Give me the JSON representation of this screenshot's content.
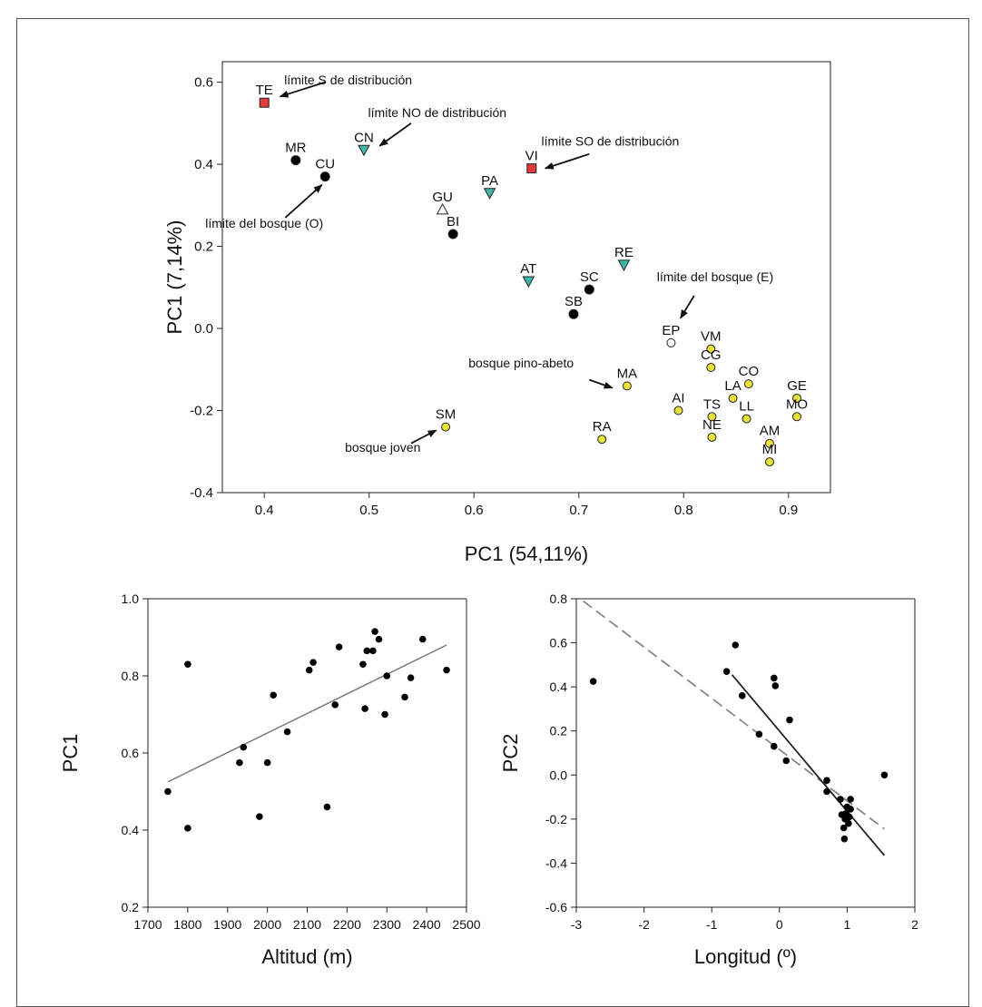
{
  "chart_data": [
    {
      "type": "scatter",
      "xlabel": "PC1 (54,11%)",
      "ylabel": "PC1 (7,14%)",
      "xlim": [
        0.36,
        0.94
      ],
      "ylim": [
        -0.4,
        0.65
      ],
      "xticks": [
        "0.4",
        "0.5",
        "0.6",
        "0.7",
        "0.8",
        "0.9"
      ],
      "xtick_values": [
        0.4,
        0.5,
        0.6,
        0.7,
        0.8,
        0.9
      ],
      "yticks": [
        "0.6",
        "0.4",
        "0.2",
        "0.0",
        "-0.2",
        "-0.4"
      ],
      "ytick_values": [
        0.6,
        0.4,
        0.2,
        0.0,
        -0.2,
        -0.4
      ],
      "marker_colors": {
        "red": "#e03b3b",
        "teal": "#3fb6a8",
        "black": "#000000",
        "yellow": "#e8e23a",
        "open": "#ffffff"
      },
      "points": [
        {
          "label": "TE",
          "x": 0.4,
          "y": 0.55,
          "marker": "square",
          "color": "red"
        },
        {
          "label": "VI",
          "x": 0.655,
          "y": 0.39,
          "marker": "square",
          "color": "red"
        },
        {
          "label": "CN",
          "x": 0.495,
          "y": 0.435,
          "marker": "triangle-down",
          "color": "teal"
        },
        {
          "label": "PA",
          "x": 0.615,
          "y": 0.33,
          "marker": "triangle-down",
          "color": "teal"
        },
        {
          "label": "AT",
          "x": 0.652,
          "y": 0.115,
          "marker": "triangle-down",
          "color": "teal"
        },
        {
          "label": "RE",
          "x": 0.743,
          "y": 0.155,
          "marker": "triangle-down",
          "color": "teal"
        },
        {
          "label": "GU",
          "x": 0.57,
          "y": 0.29,
          "marker": "triangle-up",
          "color": "open"
        },
        {
          "label": "MR",
          "x": 0.43,
          "y": 0.41,
          "marker": "circle",
          "color": "black"
        },
        {
          "label": "CU",
          "x": 0.458,
          "y": 0.37,
          "marker": "circle",
          "color": "black"
        },
        {
          "label": "BI",
          "x": 0.58,
          "y": 0.23,
          "marker": "circle",
          "color": "black"
        },
        {
          "label": "SC",
          "x": 0.71,
          "y": 0.095,
          "marker": "circle",
          "color": "black"
        },
        {
          "label": "SB",
          "x": 0.695,
          "y": 0.035,
          "marker": "circle",
          "color": "black"
        },
        {
          "label": "EP",
          "x": 0.788,
          "y": -0.035,
          "marker": "circle",
          "color": "open"
        },
        {
          "label": "VM",
          "x": 0.826,
          "y": -0.05,
          "marker": "circle",
          "color": "yellow"
        },
        {
          "label": "CG",
          "x": 0.826,
          "y": -0.095,
          "marker": "circle",
          "color": "yellow"
        },
        {
          "label": "CO",
          "x": 0.862,
          "y": -0.135,
          "marker": "circle",
          "color": "yellow"
        },
        {
          "label": "MA",
          "x": 0.746,
          "y": -0.14,
          "marker": "circle",
          "color": "yellow"
        },
        {
          "label": "LA",
          "x": 0.847,
          "y": -0.17,
          "marker": "circle",
          "color": "yellow"
        },
        {
          "label": "GE",
          "x": 0.908,
          "y": -0.17,
          "marker": "circle",
          "color": "yellow"
        },
        {
          "label": "AI",
          "x": 0.795,
          "y": -0.2,
          "marker": "circle",
          "color": "yellow"
        },
        {
          "label": "TS",
          "x": 0.827,
          "y": -0.215,
          "marker": "circle",
          "color": "yellow"
        },
        {
          "label": "LL",
          "x": 0.86,
          "y": -0.22,
          "marker": "circle",
          "color": "yellow"
        },
        {
          "label": "MO",
          "x": 0.908,
          "y": -0.215,
          "marker": "circle",
          "color": "yellow"
        },
        {
          "label": "SM",
          "x": 0.573,
          "y": -0.24,
          "marker": "circle",
          "color": "yellow"
        },
        {
          "label": "RA",
          "x": 0.722,
          "y": -0.27,
          "marker": "circle",
          "color": "yellow"
        },
        {
          "label": "NE",
          "x": 0.827,
          "y": -0.265,
          "marker": "circle",
          "color": "yellow"
        },
        {
          "label": "AM",
          "x": 0.882,
          "y": -0.28,
          "marker": "circle",
          "color": "yellow"
        },
        {
          "label": "MI",
          "x": 0.882,
          "y": -0.325,
          "marker": "circle",
          "color": "yellow"
        }
      ],
      "annotations": [
        {
          "text": "límite S de distribución",
          "tx": 0.48,
          "ty": 0.595,
          "ax": 0.415,
          "ay": 0.565
        },
        {
          "text": "límite NO de distribución",
          "tx": 0.565,
          "ty": 0.515,
          "ax": 0.51,
          "ay": 0.445
        },
        {
          "text": "límite SO de distribución",
          "tx": 0.73,
          "ty": 0.445,
          "ax": 0.668,
          "ay": 0.39
        },
        {
          "text": "límite del bosque (O)",
          "tx": 0.4,
          "ty": 0.245,
          "ax": 0.455,
          "ay": 0.35
        },
        {
          "text": "límite del bosque (E)",
          "tx": 0.83,
          "ty": 0.115,
          "ax": 0.797,
          "ay": 0.025
        },
        {
          "text": "bosque pino-abeto",
          "tx": 0.645,
          "ty": -0.095,
          "ax": 0.732,
          "ay": -0.145
        },
        {
          "text": "bosque joven",
          "tx": 0.513,
          "ty": -0.3,
          "ax": 0.564,
          "ay": -0.248
        }
      ]
    },
    {
      "type": "scatter",
      "xlabel": "Altitud (m)",
      "ylabel": "PC1",
      "xlim": [
        1700,
        2500
      ],
      "ylim": [
        0.2,
        1.0
      ],
      "xticks": [
        "1700",
        "1800",
        "1900",
        "2000",
        "2100",
        "2200",
        "2300",
        "2400",
        "2500"
      ],
      "xtick_values": [
        1700,
        1800,
        1900,
        2000,
        2100,
        2200,
        2300,
        2400,
        2500
      ],
      "yticks": [
        "1.0",
        "0.8",
        "0.6",
        "0.4",
        "0.2"
      ],
      "ytick_values": [
        1.0,
        0.8,
        0.6,
        0.4,
        0.2
      ],
      "x": [
        1750,
        1800,
        1800,
        1930,
        1940,
        1980,
        2000,
        2015,
        2050,
        2105,
        2115,
        2150,
        2170,
        2180,
        2240,
        2245,
        2250,
        2265,
        2270,
        2280,
        2295,
        2300,
        2345,
        2360,
        2390,
        2450
      ],
      "y": [
        0.5,
        0.83,
        0.405,
        0.575,
        0.615,
        0.435,
        0.575,
        0.75,
        0.655,
        0.815,
        0.835,
        0.46,
        0.725,
        0.875,
        0.83,
        0.715,
        0.865,
        0.865,
        0.915,
        0.895,
        0.7,
        0.8,
        0.745,
        0.795,
        0.895,
        0.815
      ],
      "trendlines": [
        {
          "x": [
            1750,
            2450
          ],
          "y": [
            0.525,
            0.88
          ],
          "style": "solid",
          "color": "#777777"
        }
      ]
    },
    {
      "type": "scatter",
      "xlabel": "Longitud (º)",
      "ylabel": "PC2",
      "xlim": [
        -3,
        2
      ],
      "ylim": [
        -0.6,
        0.8
      ],
      "xticks": [
        "-3",
        "-2",
        "-1",
        "0",
        "1",
        "2"
      ],
      "xtick_values": [
        -3,
        -2,
        -1,
        0,
        1,
        2
      ],
      "yticks": [
        "0.8",
        "0.6",
        "0.4",
        "0.2",
        "0.0",
        "-0.2",
        "-0.4",
        "-0.6"
      ],
      "ytick_values": [
        0.8,
        0.6,
        0.4,
        0.2,
        0.0,
        -0.2,
        -0.4,
        -0.6
      ],
      "x": [
        -2.75,
        -0.78,
        -0.65,
        -0.55,
        -0.3,
        -0.08,
        -0.06,
        -0.08,
        0.1,
        0.15,
        0.7,
        0.7,
        0.9,
        0.92,
        0.95,
        0.96,
        0.97,
        0.98,
        1.0,
        1.02,
        1.03,
        1.05,
        1.05,
        1.55
      ],
      "y": [
        0.425,
        0.47,
        0.59,
        0.36,
        0.185,
        0.44,
        0.405,
        0.13,
        0.065,
        0.25,
        -0.025,
        -0.075,
        -0.11,
        -0.18,
        -0.24,
        -0.29,
        -0.2,
        -0.175,
        -0.145,
        -0.22,
        -0.19,
        -0.11,
        -0.155,
        0.0
      ],
      "trendlines": [
        {
          "x": [
            -2.9,
            1.55
          ],
          "y": [
            0.79,
            -0.245
          ],
          "style": "dashed",
          "color": "#888888"
        },
        {
          "x": [
            -0.7,
            1.55
          ],
          "y": [
            0.455,
            -0.365
          ],
          "style": "solid",
          "color": "#222222"
        }
      ]
    }
  ]
}
